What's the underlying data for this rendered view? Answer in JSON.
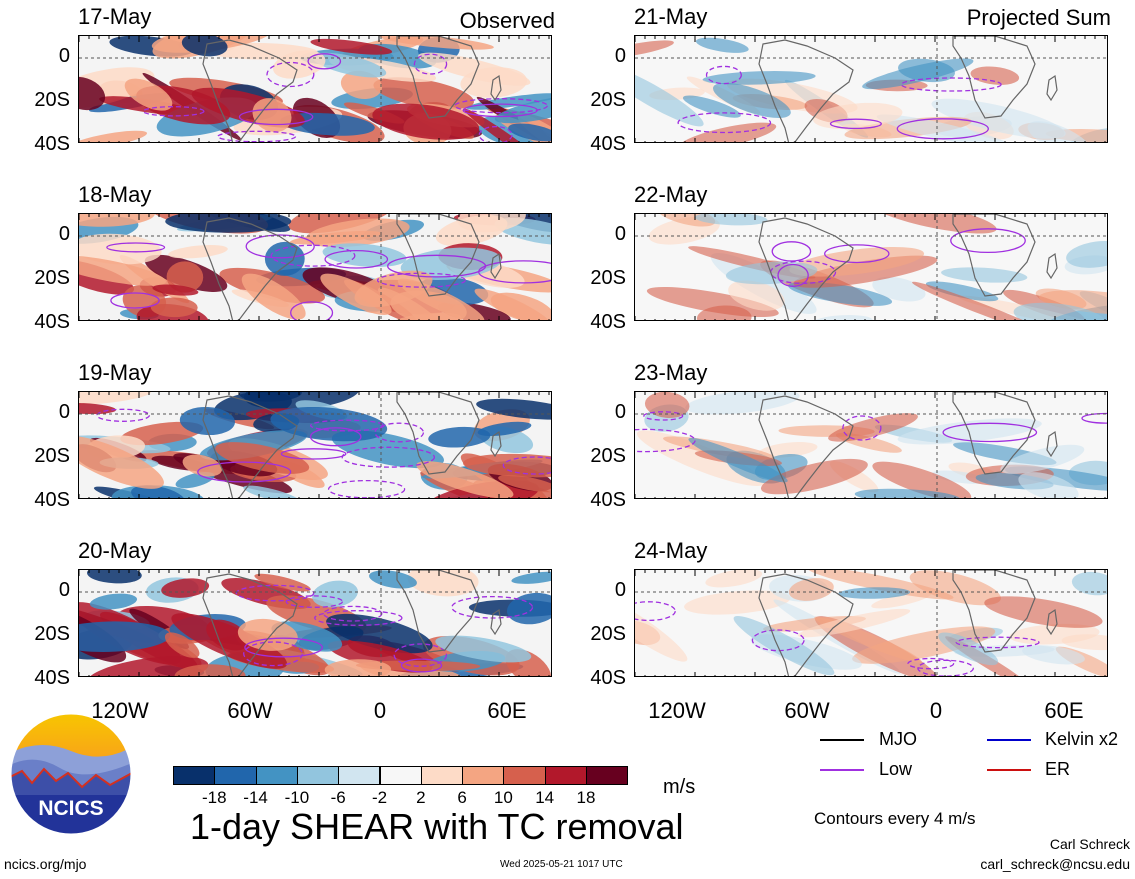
{
  "header": {
    "left_label": "Observed",
    "right_label": "Projected Sum"
  },
  "panels_left": [
    {
      "date": "17-May"
    },
    {
      "date": "18-May"
    },
    {
      "date": "19-May"
    },
    {
      "date": "20-May"
    }
  ],
  "panels_right": [
    {
      "date": "21-May"
    },
    {
      "date": "22-May"
    },
    {
      "date": "23-May"
    },
    {
      "date": "24-May"
    }
  ],
  "lat_ticks": [
    "0",
    "20S",
    "40S"
  ],
  "lon_ticks": [
    "120W",
    "60W",
    "0",
    "60E"
  ],
  "legend": {
    "mjo": "MJO",
    "low": "Low",
    "kelvin": "Kelvin x2",
    "er": "ER",
    "mjo_color": "#000000",
    "low_color": "#a030e0",
    "kelvin_color": "#0000cc",
    "er_color": "#cc1010"
  },
  "colorbar": {
    "unit": "m/s",
    "ticks": [
      "-18",
      "-14",
      "-10",
      "-6",
      "-2",
      "2",
      "6",
      "10",
      "14",
      "18"
    ],
    "colors": [
      "#08306b",
      "#2166ac",
      "#4393c3",
      "#92c5de",
      "#d1e5f0",
      "#f7f7f7",
      "#fddbc7",
      "#f4a582",
      "#d6604d",
      "#b2182b",
      "#67001f"
    ]
  },
  "title": "1-day SHEAR with TC removal",
  "contour_note": "Contours every 4 m/s",
  "logo_text": "NCICS",
  "footer": {
    "site": "ncics.org/mjo",
    "timestamp": "Wed 2025-05-21 1017 UTC",
    "author": "Carl Schreck",
    "email": "carl_schreck@ncsu.edu"
  },
  "chart_data": {
    "type": "heatmap",
    "variable": "1-day SHEAR with TC removal",
    "unit": "m/s",
    "levels": [
      -18,
      -14,
      -10,
      -6,
      -2,
      2,
      6,
      10,
      14,
      18
    ],
    "lat_range": [
      "10N",
      "40S"
    ],
    "lon_ticks": [
      "120W",
      "60W",
      "0",
      "60E"
    ],
    "panels": [
      {
        "date": "17-May",
        "group": "Observed"
      },
      {
        "date": "18-May",
        "group": "Observed"
      },
      {
        "date": "19-May",
        "group": "Observed"
      },
      {
        "date": "20-May",
        "group": "Observed"
      },
      {
        "date": "21-May",
        "group": "Projected Sum"
      },
      {
        "date": "22-May",
        "group": "Projected Sum"
      },
      {
        "date": "23-May",
        "group": "Projected Sum"
      },
      {
        "date": "24-May",
        "group": "Projected Sum"
      }
    ],
    "contour_interval": "4 m/s"
  }
}
